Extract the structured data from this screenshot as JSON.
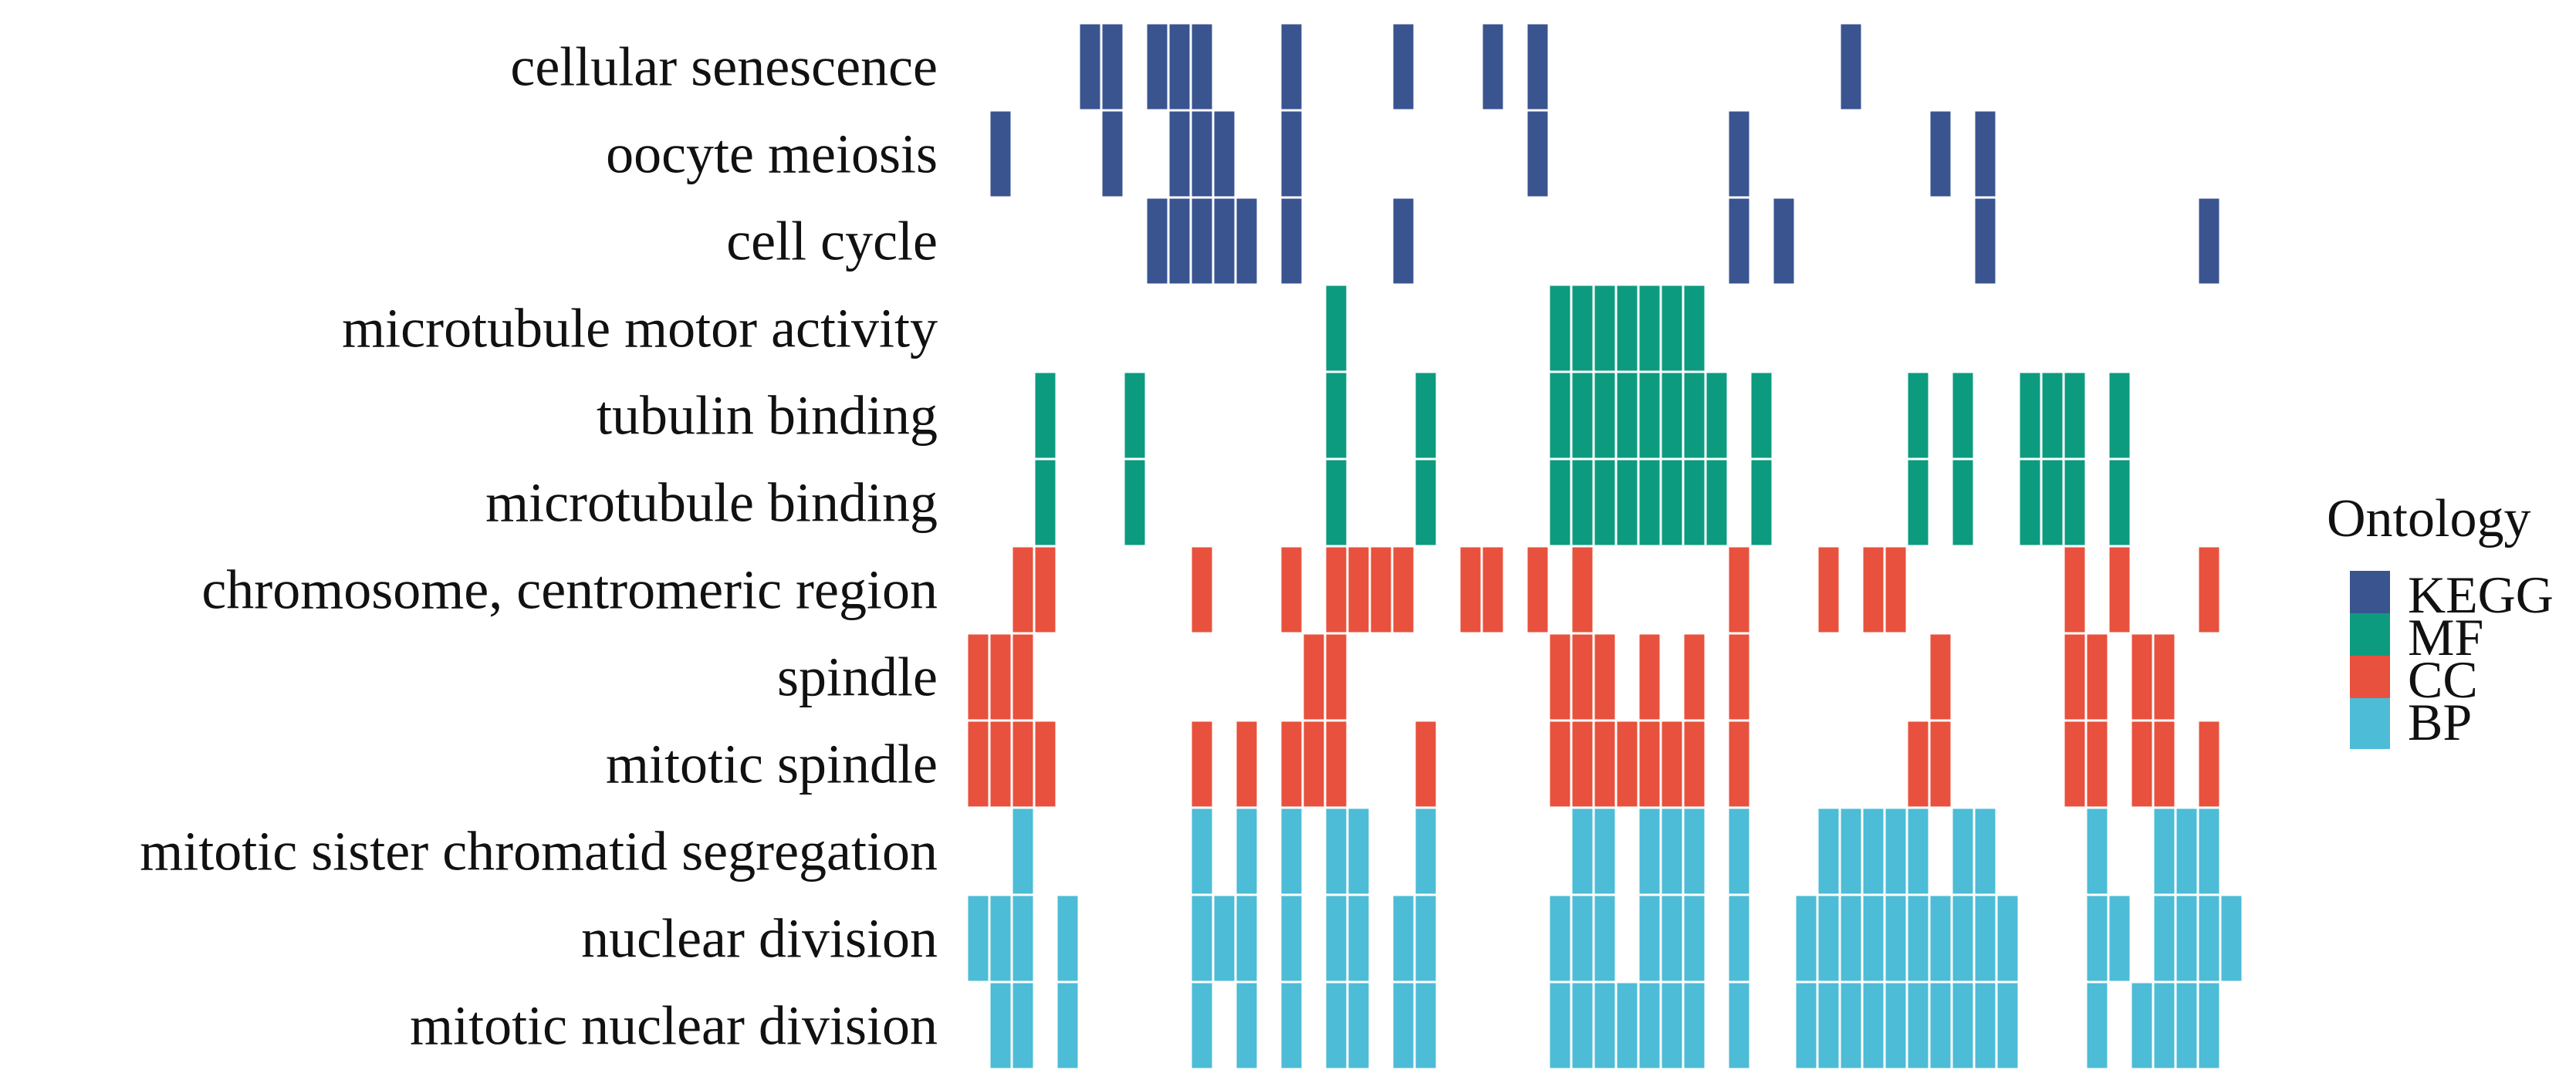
{
  "chart_data": {
    "type": "heatmap",
    "title": "",
    "xlabel": "",
    "ylabel": "",
    "n_columns": 58,
    "terms": [
      {
        "label": "cellular senescence",
        "ontology": "KEGG",
        "cols": [
          5,
          6,
          8,
          9,
          10,
          14,
          19,
          23,
          25,
          39
        ]
      },
      {
        "label": "oocyte meiosis",
        "ontology": "KEGG",
        "cols": [
          1,
          6,
          9,
          10,
          11,
          14,
          25,
          34,
          43,
          45
        ]
      },
      {
        "label": "cell cycle",
        "ontology": "KEGG",
        "cols": [
          8,
          9,
          10,
          11,
          12,
          14,
          19,
          34,
          36,
          45,
          55
        ]
      },
      {
        "label": "microtubule motor activity",
        "ontology": "MF",
        "cols": [
          16,
          26,
          27,
          28,
          29,
          30,
          31,
          32
        ]
      },
      {
        "label": "tubulin binding",
        "ontology": "MF",
        "cols": [
          3,
          7,
          16,
          20,
          26,
          27,
          28,
          29,
          30,
          31,
          32,
          33,
          35,
          42,
          44,
          47,
          48,
          49,
          51
        ]
      },
      {
        "label": "microtubule binding",
        "ontology": "MF",
        "cols": [
          3,
          7,
          16,
          20,
          26,
          27,
          28,
          29,
          30,
          31,
          32,
          33,
          35,
          42,
          44,
          47,
          48,
          49,
          51
        ]
      },
      {
        "label": "chromosome, centromeric region",
        "ontology": "CC",
        "cols": [
          2,
          3,
          10,
          14,
          16,
          17,
          18,
          19,
          22,
          23,
          25,
          27,
          34,
          38,
          40,
          41,
          49,
          51,
          55
        ]
      },
      {
        "label": "spindle",
        "ontology": "CC",
        "cols": [
          0,
          1,
          2,
          15,
          16,
          26,
          27,
          28,
          30,
          32,
          34,
          43,
          49,
          50,
          52,
          53
        ]
      },
      {
        "label": "mitotic spindle",
        "ontology": "CC",
        "cols": [
          0,
          1,
          2,
          3,
          10,
          12,
          14,
          15,
          16,
          20,
          26,
          27,
          28,
          29,
          30,
          31,
          32,
          34,
          42,
          43,
          49,
          50,
          52,
          53,
          55
        ]
      },
      {
        "label": "mitotic sister chromatid segregation",
        "ontology": "BP",
        "cols": [
          2,
          10,
          12,
          14,
          16,
          17,
          20,
          27,
          28,
          30,
          31,
          32,
          34,
          38,
          39,
          40,
          41,
          42,
          44,
          45,
          50,
          53,
          54,
          55
        ]
      },
      {
        "label": "nuclear division",
        "ontology": "BP",
        "cols": [
          0,
          1,
          2,
          4,
          10,
          11,
          12,
          14,
          16,
          17,
          19,
          20,
          26,
          27,
          28,
          30,
          31,
          32,
          34,
          37,
          38,
          39,
          40,
          41,
          42,
          43,
          44,
          45,
          46,
          50,
          51,
          53,
          54,
          55,
          56
        ]
      },
      {
        "label": "mitotic nuclear division",
        "ontology": "BP",
        "cols": [
          1,
          2,
          4,
          10,
          12,
          14,
          16,
          17,
          19,
          20,
          26,
          27,
          28,
          29,
          30,
          31,
          32,
          34,
          37,
          38,
          39,
          40,
          41,
          42,
          43,
          44,
          45,
          46,
          50,
          52,
          53,
          54,
          55
        ]
      }
    ],
    "legend": {
      "title": "Ontology",
      "position": "right",
      "items": [
        {
          "label": "KEGG",
          "color": "#3a5490"
        },
        {
          "label": "MF",
          "color": "#0d9b7f"
        },
        {
          "label": "CC",
          "color": "#e8513d"
        },
        {
          "label": "BP",
          "color": "#4dbcd6"
        }
      ]
    }
  }
}
